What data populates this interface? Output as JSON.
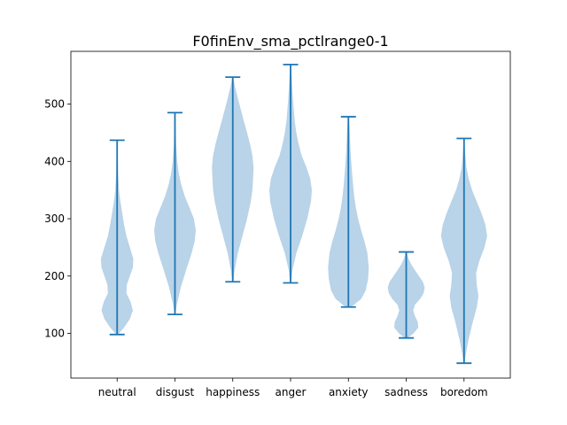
{
  "chart_data": {
    "type": "violin",
    "title": "F0finEnv_sma_pctlrange0-1",
    "xlabel": "",
    "ylabel": "",
    "ylim": [
      22,
      592
    ],
    "yticks": [
      100,
      200,
      300,
      400,
      500
    ],
    "grid": false,
    "violin_color": "#1f77b4",
    "body_color": "#b9d3e8",
    "categories": [
      "neutral",
      "disgust",
      "happiness",
      "anger",
      "anxiety",
      "sadness",
      "boredom"
    ],
    "violins": [
      {
        "category": "neutral",
        "min": 98,
        "max": 437,
        "profile": [
          [
            98,
            0.04
          ],
          [
            110,
            0.3
          ],
          [
            125,
            0.55
          ],
          [
            140,
            0.68
          ],
          [
            155,
            0.58
          ],
          [
            170,
            0.4
          ],
          [
            185,
            0.42
          ],
          [
            200,
            0.55
          ],
          [
            215,
            0.68
          ],
          [
            230,
            0.7
          ],
          [
            250,
            0.55
          ],
          [
            270,
            0.4
          ],
          [
            290,
            0.3
          ],
          [
            310,
            0.22
          ],
          [
            330,
            0.14
          ],
          [
            350,
            0.08
          ],
          [
            380,
            0.04
          ],
          [
            410,
            0.02
          ],
          [
            437,
            0.01
          ]
        ]
      },
      {
        "category": "disgust",
        "min": 133,
        "max": 485,
        "profile": [
          [
            133,
            0.02
          ],
          [
            150,
            0.08
          ],
          [
            180,
            0.25
          ],
          [
            210,
            0.48
          ],
          [
            240,
            0.72
          ],
          [
            260,
            0.85
          ],
          [
            280,
            0.9
          ],
          [
            300,
            0.82
          ],
          [
            320,
            0.62
          ],
          [
            340,
            0.42
          ],
          [
            360,
            0.27
          ],
          [
            380,
            0.16
          ],
          [
            400,
            0.1
          ],
          [
            430,
            0.05
          ],
          [
            460,
            0.03
          ],
          [
            485,
            0.01
          ]
        ]
      },
      {
        "category": "happiness",
        "min": 190,
        "max": 547,
        "profile": [
          [
            190,
            0.02
          ],
          [
            210,
            0.08
          ],
          [
            240,
            0.22
          ],
          [
            270,
            0.42
          ],
          [
            300,
            0.62
          ],
          [
            330,
            0.78
          ],
          [
            350,
            0.85
          ],
          [
            370,
            0.88
          ],
          [
            390,
            0.9
          ],
          [
            410,
            0.85
          ],
          [
            430,
            0.75
          ],
          [
            450,
            0.62
          ],
          [
            470,
            0.48
          ],
          [
            490,
            0.35
          ],
          [
            510,
            0.22
          ],
          [
            530,
            0.1
          ],
          [
            547,
            0.02
          ]
        ]
      },
      {
        "category": "anger",
        "min": 188,
        "max": 569,
        "profile": [
          [
            188,
            0.02
          ],
          [
            210,
            0.08
          ],
          [
            240,
            0.25
          ],
          [
            270,
            0.5
          ],
          [
            300,
            0.72
          ],
          [
            330,
            0.88
          ],
          [
            350,
            0.92
          ],
          [
            370,
            0.85
          ],
          [
            390,
            0.68
          ],
          [
            410,
            0.48
          ],
          [
            430,
            0.35
          ],
          [
            450,
            0.25
          ],
          [
            470,
            0.18
          ],
          [
            500,
            0.12
          ],
          [
            530,
            0.07
          ],
          [
            560,
            0.03
          ],
          [
            569,
            0.01
          ]
        ]
      },
      {
        "category": "anxiety",
        "min": 146,
        "max": 478,
        "profile": [
          [
            146,
            0.12
          ],
          [
            160,
            0.55
          ],
          [
            175,
            0.75
          ],
          [
            195,
            0.85
          ],
          [
            215,
            0.88
          ],
          [
            240,
            0.82
          ],
          [
            260,
            0.7
          ],
          [
            280,
            0.55
          ],
          [
            300,
            0.42
          ],
          [
            320,
            0.32
          ],
          [
            340,
            0.25
          ],
          [
            360,
            0.2
          ],
          [
            380,
            0.16
          ],
          [
            400,
            0.12
          ],
          [
            420,
            0.09
          ],
          [
            450,
            0.06
          ],
          [
            478,
            0.02
          ]
        ]
      },
      {
        "category": "sadness",
        "min": 92,
        "max": 242,
        "profile": [
          [
            92,
            0.05
          ],
          [
            100,
            0.32
          ],
          [
            110,
            0.52
          ],
          [
            120,
            0.5
          ],
          [
            130,
            0.38
          ],
          [
            140,
            0.3
          ],
          [
            150,
            0.38
          ],
          [
            160,
            0.6
          ],
          [
            170,
            0.75
          ],
          [
            180,
            0.8
          ],
          [
            190,
            0.72
          ],
          [
            200,
            0.55
          ],
          [
            210,
            0.38
          ],
          [
            220,
            0.22
          ],
          [
            230,
            0.1
          ],
          [
            242,
            0.02
          ]
        ]
      },
      {
        "category": "boredom",
        "min": 48,
        "max": 440,
        "profile": [
          [
            48,
            0.02
          ],
          [
            65,
            0.08
          ],
          [
            90,
            0.2
          ],
          [
            120,
            0.38
          ],
          [
            145,
            0.55
          ],
          [
            165,
            0.62
          ],
          [
            185,
            0.55
          ],
          [
            205,
            0.52
          ],
          [
            225,
            0.65
          ],
          [
            250,
            0.88
          ],
          [
            270,
            1.0
          ],
          [
            290,
            0.92
          ],
          [
            310,
            0.75
          ],
          [
            330,
            0.55
          ],
          [
            350,
            0.35
          ],
          [
            370,
            0.2
          ],
          [
            390,
            0.1
          ],
          [
            415,
            0.05
          ],
          [
            440,
            0.01
          ]
        ]
      }
    ]
  }
}
